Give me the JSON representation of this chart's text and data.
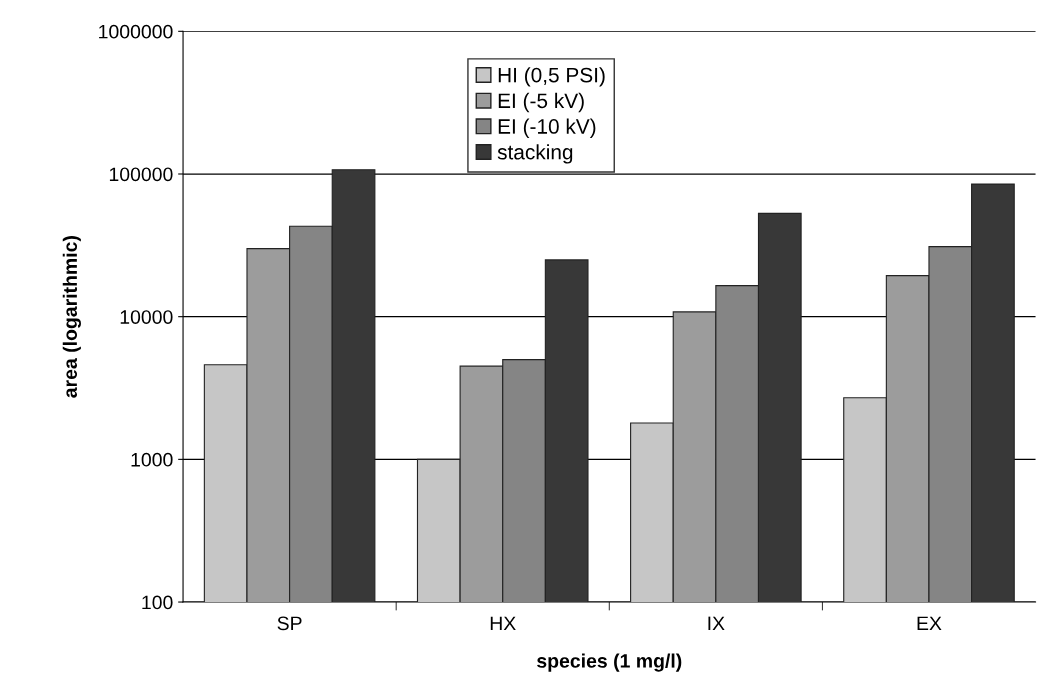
{
  "chart_data": {
    "type": "bar",
    "xlabel": "species (1 mg/l)",
    "ylabel": "area (logarithmic)",
    "categories": [
      "SP",
      "HX",
      "IX",
      "EX"
    ],
    "series": [
      {
        "name": "HI (0,5 PSI)",
        "color": "#c6c6c6",
        "values": [
          4600,
          1000,
          1800,
          2700
        ]
      },
      {
        "name": "EI (-5 kV)",
        "color": "#9c9c9c",
        "values": [
          30000,
          4500,
          10800,
          19400
        ]
      },
      {
        "name": "EI (-10 kV)",
        "color": "#858585",
        "values": [
          43000,
          5000,
          16500,
          31000
        ]
      },
      {
        "name": "stacking",
        "color": "#383838",
        "values": [
          107000,
          25000,
          53000,
          85000
        ]
      }
    ],
    "log": true,
    "ylim": [
      100,
      1000000
    ],
    "yticks": [
      100,
      1000,
      10000,
      100000,
      1000000
    ],
    "grid": "y",
    "legend": "top"
  }
}
